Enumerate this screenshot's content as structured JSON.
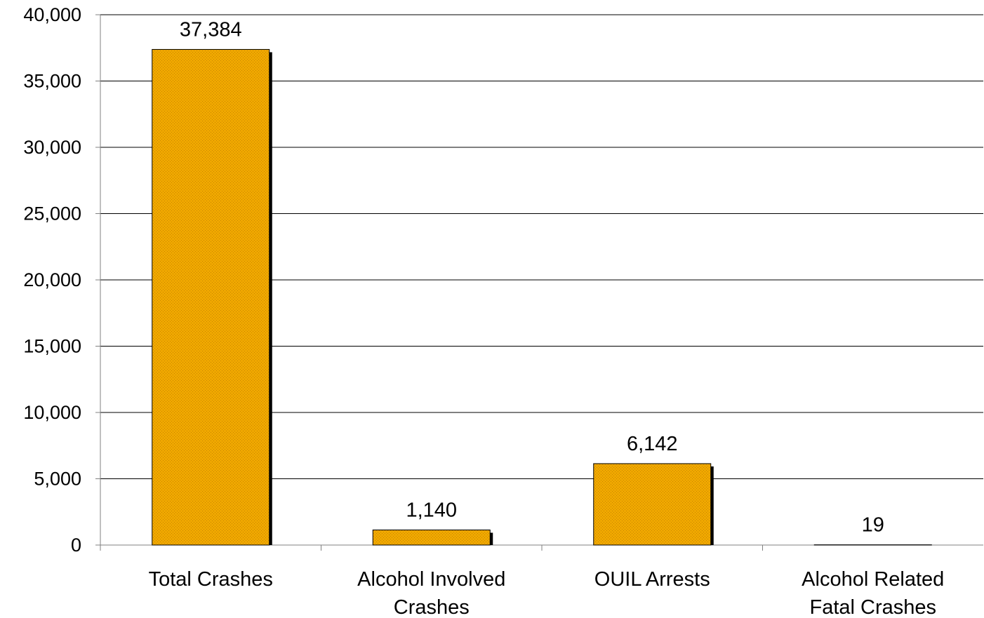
{
  "chart_data": {
    "type": "bar",
    "title": "",
    "xlabel": "",
    "ylabel": "",
    "categories": [
      [
        "Total Crashes"
      ],
      [
        "Alcohol Involved",
        "Crashes"
      ],
      [
        "OUIL Arrests"
      ],
      [
        "Alcohol Related",
        "Fatal Crashes"
      ]
    ],
    "values": [
      37384,
      1140,
      6142,
      19
    ],
    "value_labels": [
      "37,384",
      "1,140",
      "6,142",
      "19"
    ],
    "ylim": [
      0,
      40000
    ],
    "yticks": [
      0,
      5000,
      10000,
      15000,
      20000,
      25000,
      30000,
      35000,
      40000
    ],
    "ytick_labels": [
      "0",
      "5,000",
      "10,000",
      "15,000",
      "20,000",
      "25,000",
      "30,000",
      "35,000",
      "40,000"
    ],
    "grid": true,
    "legend": "none",
    "colors": {
      "bar_fill": "#F0A800",
      "bar_stipple": "#C88600",
      "bar_edge": "#000000",
      "bar_shadow": "#000000",
      "gridline": "#000000",
      "axis": "#808080"
    }
  }
}
